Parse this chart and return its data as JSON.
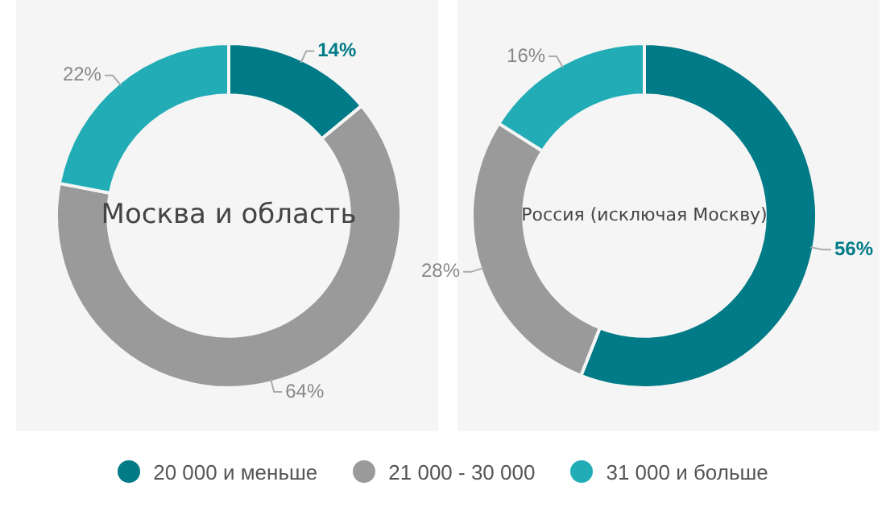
{
  "chart_data": [
    {
      "type": "donut",
      "title": "Москва и область",
      "categories": [
        "20 000 и меньше",
        "21 000 - 30 000",
        "31 000 и больше"
      ],
      "values": [
        14,
        64,
        22
      ],
      "colors": [
        "#007b87",
        "#9a9a9a",
        "#22adb6"
      ],
      "value_labels": [
        "14%",
        "64%",
        "22%"
      ],
      "legend": "bottom"
    },
    {
      "type": "donut",
      "title": "Россия (исключая Москву)",
      "categories": [
        null,
        null,
        null
      ],
      "values": [
        56,
        28,
        16
      ],
      "colors": [
        "#007b87",
        "#9a9a9a",
        "#22adb6"
      ],
      "value_labels": [
        "56%",
        "28%",
        "16%"
      ]
    }
  ]
}
